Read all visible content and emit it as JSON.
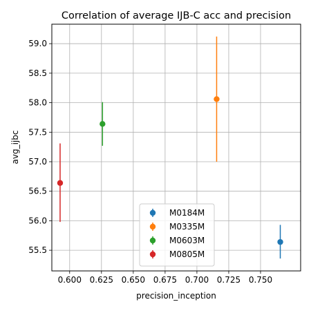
{
  "chart_data": {
    "type": "scatter",
    "title": "Correlation of average IJB-C acc and precision",
    "xlabel": "precision_inception",
    "ylabel": "avg_ijbc",
    "xlim": [
      0.586,
      0.7815
    ],
    "ylim": [
      55.15,
      59.33
    ],
    "xticks": [
      0.6,
      0.625,
      0.65,
      0.675,
      0.7,
      0.725,
      0.75
    ],
    "xtick_labels": [
      "0.600",
      "0.625",
      "0.650",
      "0.675",
      "0.700",
      "0.725",
      "0.750"
    ],
    "yticks": [
      55.5,
      56.0,
      56.5,
      57.0,
      57.5,
      58.0,
      58.5,
      59.0
    ],
    "ytick_labels": [
      "55.5",
      "56.0",
      "56.5",
      "57.0",
      "57.5",
      "58.0",
      "58.5",
      "59.0"
    ],
    "grid": true,
    "legend_position": "bottom-center",
    "series": [
      {
        "name": "M0184M",
        "color": "#1f77b4",
        "x": 0.7655,
        "y": 55.64,
        "yerr_low": 55.36,
        "yerr_high": 55.93
      },
      {
        "name": "M0335M",
        "color": "#ff7f0e",
        "x": 0.7155,
        "y": 58.06,
        "yerr_low": 57.0,
        "yerr_high": 59.12
      },
      {
        "name": "M0603M",
        "color": "#2ca02c",
        "x": 0.6258,
        "y": 57.64,
        "yerr_low": 57.27,
        "yerr_high": 58.01
      },
      {
        "name": "M0805M",
        "color": "#d62728",
        "x": 0.5925,
        "y": 56.64,
        "yerr_low": 55.98,
        "yerr_high": 57.31
      }
    ]
  }
}
